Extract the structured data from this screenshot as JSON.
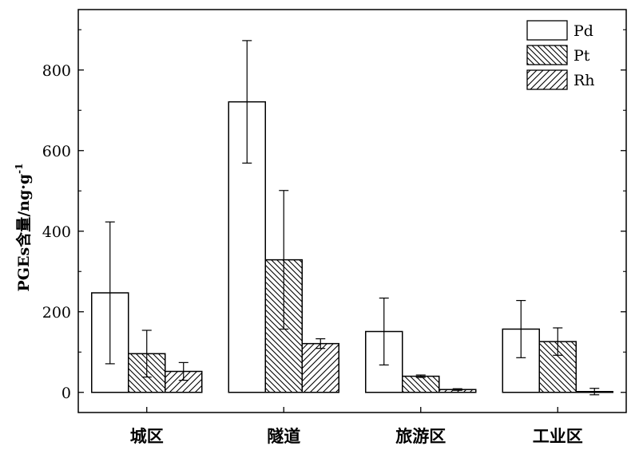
{
  "chart_data": {
    "type": "bar",
    "title": "",
    "xlabel": "",
    "ylabel": "PGEs含量/ng·g",
    "ylabel_sup": "-1",
    "categories": [
      "城区",
      "隧道",
      "旅游区",
      "工业区"
    ],
    "ylim": [
      -50,
      950
    ],
    "yticks": [
      0,
      200,
      400,
      600,
      800
    ],
    "legend_position": "top-right",
    "grid": false,
    "series": [
      {
        "name": "Pd",
        "pattern": "none",
        "values": [
          247,
          721,
          151,
          157
        ],
        "errors": [
          176,
          152,
          83,
          71
        ]
      },
      {
        "name": "Pt",
        "pattern": "backslash",
        "values": [
          96,
          329,
          40,
          126
        ],
        "errors": [
          58,
          172,
          3,
          34
        ]
      },
      {
        "name": "Rh",
        "pattern": "slash",
        "values": [
          52,
          121,
          7,
          2
        ],
        "errors": [
          22,
          12,
          2,
          8
        ]
      }
    ]
  }
}
